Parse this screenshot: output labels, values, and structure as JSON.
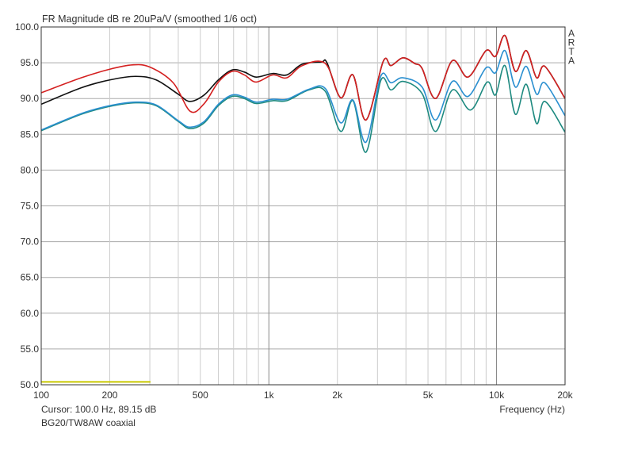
{
  "chart_data": {
    "type": "line",
    "title": "FR Magnitude dB re 20uPa/V (smoothed 1/6 oct)",
    "xlabel": "Frequency (Hz)",
    "ylabel": "",
    "xscale": "log",
    "xlim": [
      100,
      20000
    ],
    "ylim": [
      50,
      100
    ],
    "grid": true,
    "y_ticks": [
      "50.0",
      "55.0",
      "60.0",
      "65.0",
      "70.0",
      "75.0",
      "80.0",
      "85.0",
      "90.0",
      "95.0",
      "100.0"
    ],
    "y_tick_values": [
      50,
      55,
      60,
      65,
      70,
      75,
      80,
      85,
      90,
      95,
      100
    ],
    "x_ticks": [
      {
        "value": 100,
        "label": "100"
      },
      {
        "value": 200,
        "label": "200"
      },
      {
        "value": 500,
        "label": "500"
      },
      {
        "value": 1000,
        "label": "1k"
      },
      {
        "value": 2000,
        "label": "2k"
      },
      {
        "value": 5000,
        "label": "5k"
      },
      {
        "value": 10000,
        "label": "10k"
      },
      {
        "value": 20000,
        "label": "20k"
      }
    ],
    "x_grid": [
      200,
      300,
      400,
      500,
      600,
      700,
      800,
      900,
      1000,
      2000,
      3000,
      4000,
      5000,
      6000,
      7000,
      8000,
      9000,
      10000
    ],
    "x_grid_major": [
      1000,
      10000
    ],
    "side_label": [
      "A",
      "R",
      "T",
      "A"
    ],
    "cursor_text": "Cursor: 100.0 Hz, 89.15 dB",
    "caption": "BG20/TW8AW coaxial",
    "series": [
      {
        "name": "black",
        "color": "#111111",
        "points": [
          [
            100,
            89.2
          ],
          [
            150,
            91.5
          ],
          [
            200,
            92.6
          ],
          [
            260,
            93.1
          ],
          [
            320,
            92.6
          ],
          [
            400,
            90.6
          ],
          [
            450,
            89.6
          ],
          [
            520,
            90.5
          ],
          [
            600,
            92.6
          ],
          [
            690,
            94.0
          ],
          [
            780,
            93.7
          ],
          [
            880,
            93.0
          ],
          [
            1040,
            93.5
          ],
          [
            1200,
            93.3
          ],
          [
            1400,
            94.8
          ],
          [
            1700,
            95.1
          ],
          [
            1800,
            95.0
          ],
          [
            2070,
            90.1
          ],
          [
            2340,
            93.3
          ],
          [
            2670,
            87.0
          ],
          [
            3180,
            95.2
          ],
          [
            3440,
            94.6
          ],
          [
            3880,
            95.7
          ],
          [
            4370,
            94.9
          ],
          [
            4710,
            94.2
          ],
          [
            5400,
            90.0
          ],
          [
            6400,
            95.3
          ],
          [
            7500,
            93.0
          ],
          [
            9000,
            96.7
          ],
          [
            9900,
            95.9
          ],
          [
            10900,
            98.8
          ],
          [
            12100,
            93.8
          ],
          [
            13500,
            96.7
          ],
          [
            15000,
            92.9
          ],
          [
            16300,
            94.5
          ],
          [
            20000,
            90.0
          ]
        ]
      },
      {
        "name": "teal",
        "color": "#1e8a80",
        "points": [
          [
            100,
            85.5
          ],
          [
            150,
            87.8
          ],
          [
            200,
            88.9
          ],
          [
            260,
            89.4
          ],
          [
            320,
            89.0
          ],
          [
            400,
            86.8
          ],
          [
            450,
            85.8
          ],
          [
            520,
            86.6
          ],
          [
            600,
            89.0
          ],
          [
            690,
            90.3
          ],
          [
            780,
            90.0
          ],
          [
            880,
            89.3
          ],
          [
            1040,
            89.7
          ],
          [
            1200,
            89.7
          ],
          [
            1500,
            91.2
          ],
          [
            1770,
            91.0
          ],
          [
            2070,
            85.4
          ],
          [
            2340,
            89.7
          ],
          [
            2670,
            82.5
          ],
          [
            3100,
            92.5
          ],
          [
            3440,
            91.2
          ],
          [
            3880,
            92.4
          ],
          [
            4710,
            90.7
          ],
          [
            5400,
            85.4
          ],
          [
            6400,
            91.2
          ],
          [
            7700,
            88.4
          ],
          [
            9100,
            92.3
          ],
          [
            9900,
            90.5
          ],
          [
            10900,
            94.6
          ],
          [
            12100,
            87.8
          ],
          [
            13500,
            92.0
          ],
          [
            15000,
            86.5
          ],
          [
            16300,
            89.6
          ],
          [
            20000,
            85.3
          ]
        ]
      },
      {
        "name": "blue",
        "color": "#2a8fd0",
        "points": [
          [
            100,
            85.6
          ],
          [
            150,
            87.9
          ],
          [
            200,
            89.0
          ],
          [
            260,
            89.5
          ],
          [
            320,
            89.1
          ],
          [
            400,
            86.9
          ],
          [
            450,
            86.0
          ],
          [
            520,
            86.8
          ],
          [
            600,
            89.2
          ],
          [
            690,
            90.5
          ],
          [
            780,
            90.2
          ],
          [
            880,
            89.5
          ],
          [
            1040,
            89.9
          ],
          [
            1200,
            89.9
          ],
          [
            1500,
            91.3
          ],
          [
            1770,
            91.4
          ],
          [
            2070,
            86.6
          ],
          [
            2340,
            89.8
          ],
          [
            2670,
            83.9
          ],
          [
            3100,
            93.1
          ],
          [
            3440,
            92.2
          ],
          [
            3880,
            92.9
          ],
          [
            4710,
            91.6
          ],
          [
            5400,
            87.0
          ],
          [
            6400,
            92.4
          ],
          [
            7500,
            90.3
          ],
          [
            9000,
            94.3
          ],
          [
            9900,
            93.6
          ],
          [
            10900,
            96.7
          ],
          [
            12100,
            91.6
          ],
          [
            13500,
            94.5
          ],
          [
            15000,
            90.6
          ],
          [
            16300,
            92.2
          ],
          [
            20000,
            87.6
          ]
        ]
      },
      {
        "name": "red",
        "color": "#d42020",
        "points": [
          [
            100,
            90.8
          ],
          [
            150,
            92.9
          ],
          [
            200,
            94.1
          ],
          [
            251,
            94.7
          ],
          [
            300,
            94.4
          ],
          [
            380,
            92.2
          ],
          [
            452,
            88.2
          ],
          [
            520,
            89.3
          ],
          [
            600,
            92.3
          ],
          [
            690,
            93.8
          ],
          [
            780,
            93.3
          ],
          [
            880,
            92.3
          ],
          [
            1040,
            93.3
          ],
          [
            1200,
            92.9
          ],
          [
            1400,
            94.6
          ],
          [
            1770,
            94.9
          ],
          [
            2070,
            90.1
          ],
          [
            2340,
            93.3
          ],
          [
            2670,
            87.0
          ],
          [
            3180,
            95.2
          ],
          [
            3440,
            94.6
          ],
          [
            3880,
            95.7
          ],
          [
            4370,
            94.9
          ],
          [
            4710,
            94.2
          ],
          [
            5400,
            90.0
          ],
          [
            6400,
            95.3
          ],
          [
            7500,
            93.0
          ],
          [
            9000,
            96.7
          ],
          [
            9900,
            95.9
          ],
          [
            10900,
            98.8
          ],
          [
            12100,
            93.8
          ],
          [
            13500,
            96.7
          ],
          [
            15000,
            92.9
          ],
          [
            16300,
            94.5
          ],
          [
            20000,
            90.0
          ]
        ]
      },
      {
        "name": "yellow",
        "color": "#c8c800",
        "points": [
          [
            100,
            50.4
          ],
          [
            302,
            50.4
          ]
        ]
      }
    ]
  }
}
